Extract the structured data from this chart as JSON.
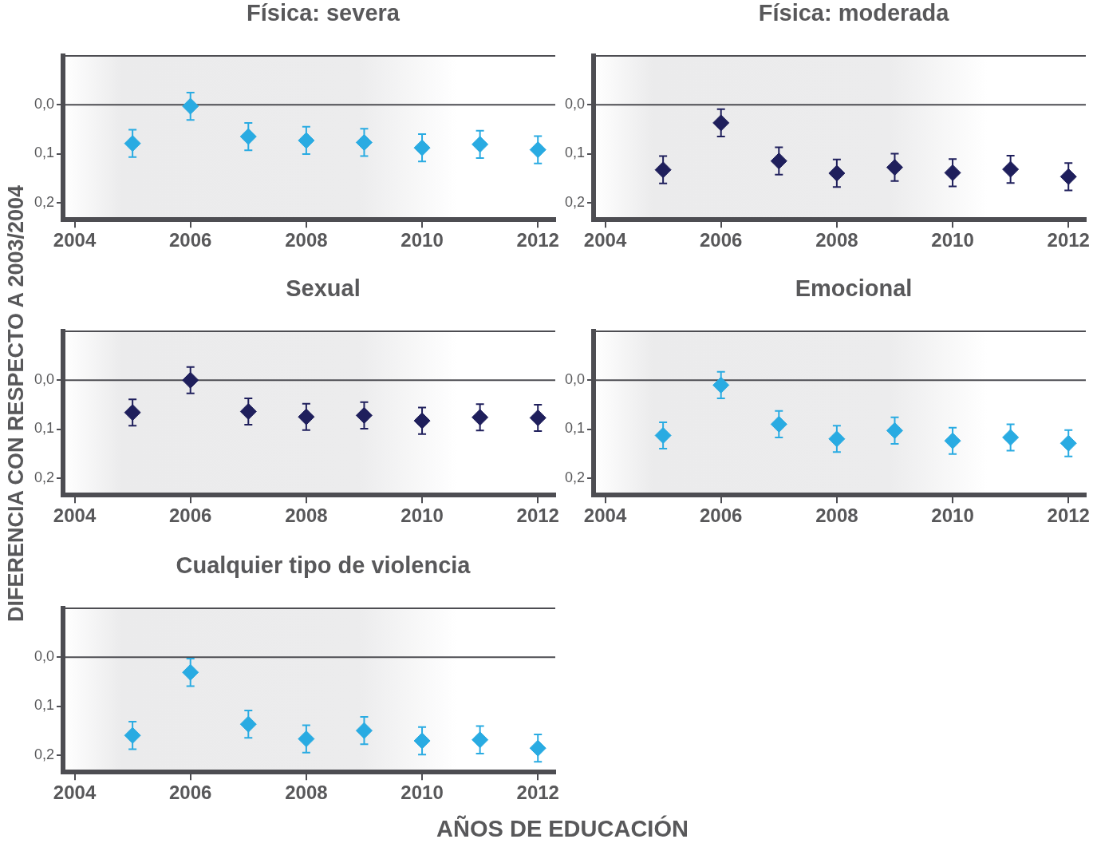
{
  "chart_data": [
    {
      "type": "scatter",
      "title": "Física: severa",
      "ylabel": "DIFERENCIA CON RESPECTO A 2003/2004",
      "x": [
        2005,
        2006,
        2007,
        2008,
        2009,
        2010,
        2011,
        2012
      ],
      "values": [
        0.079,
        0.003,
        0.065,
        0.073,
        0.077,
        0.088,
        0.081,
        0.092
      ],
      "errors": [
        0.028,
        0.028,
        0.028,
        0.028,
        0.028,
        0.028,
        0.028,
        0.028
      ],
      "color": "#29abe2",
      "marker": "diamond",
      "xlim": [
        2003.8,
        2012.3
      ],
      "xticks": [
        2004,
        2006,
        2008,
        2010,
        2012
      ],
      "ylim": [
        0.235,
        -0.1
      ],
      "yticks": [
        {
          "value": 0,
          "label": "0,0"
        },
        {
          "value": 0.1,
          "label": "0,1"
        },
        {
          "value": 0.2,
          "label": "0,2"
        }
      ],
      "ref_lines": [
        {
          "axis": "y",
          "value": 0,
          "color": "#4d4d52"
        }
      ],
      "grid": false,
      "legend": false
    },
    {
      "type": "scatter",
      "title": "Física: moderada",
      "x": [
        2005,
        2006,
        2007,
        2008,
        2009,
        2010,
        2011,
        2012
      ],
      "values": [
        0.133,
        0.037,
        0.115,
        0.14,
        0.128,
        0.139,
        0.132,
        0.147
      ],
      "errors": [
        0.028,
        0.028,
        0.028,
        0.028,
        0.028,
        0.028,
        0.028,
        0.028
      ],
      "color": "#1f1f5c",
      "marker": "diamond",
      "xlim": [
        2003.8,
        2012.3
      ],
      "xticks": [
        2004,
        2006,
        2008,
        2010,
        2012
      ],
      "ylim": [
        0.235,
        -0.1
      ],
      "yticks": [
        {
          "value": 0,
          "label": "0,0"
        },
        {
          "value": 0.1,
          "label": "0,1"
        },
        {
          "value": 0.2,
          "label": "0,2"
        }
      ],
      "ref_lines": [
        {
          "axis": "y",
          "value": 0,
          "color": "#4d4d52"
        }
      ],
      "grid": false,
      "legend": false
    },
    {
      "type": "scatter",
      "title": "Sexual",
      "x": [
        2005,
        2006,
        2007,
        2008,
        2009,
        2010,
        2011,
        2012
      ],
      "values": [
        0.066,
        0.0,
        0.064,
        0.075,
        0.072,
        0.083,
        0.076,
        0.077
      ],
      "errors": [
        0.027,
        0.027,
        0.027,
        0.027,
        0.027,
        0.027,
        0.027,
        0.027
      ],
      "color": "#1f1f5c",
      "marker": "diamond",
      "xlim": [
        2003.8,
        2012.3
      ],
      "xticks": [
        2004,
        2006,
        2008,
        2010,
        2012
      ],
      "ylim": [
        0.235,
        -0.1
      ],
      "yticks": [
        {
          "value": 0,
          "label": "0,0"
        },
        {
          "value": 0.1,
          "label": "0,1"
        },
        {
          "value": 0.2,
          "label": "0,2"
        }
      ],
      "ref_lines": [
        {
          "axis": "y",
          "value": 0,
          "color": "#4d4d52"
        }
      ],
      "grid": false,
      "legend": false
    },
    {
      "type": "scatter",
      "title": "Emocional",
      "x": [
        2005,
        2006,
        2007,
        2008,
        2009,
        2010,
        2011,
        2012
      ],
      "values": [
        0.113,
        0.01,
        0.09,
        0.12,
        0.103,
        0.124,
        0.117,
        0.129
      ],
      "errors": [
        0.027,
        0.027,
        0.027,
        0.027,
        0.027,
        0.027,
        0.027,
        0.027
      ],
      "color": "#29abe2",
      "marker": "diamond",
      "xlim": [
        2003.8,
        2012.3
      ],
      "xticks": [
        2004,
        2006,
        2008,
        2010,
        2012
      ],
      "ylim": [
        0.235,
        -0.1
      ],
      "yticks": [
        {
          "value": 0,
          "label": "0,0"
        },
        {
          "value": 0.1,
          "label": "0,1"
        },
        {
          "value": 0.2,
          "label": "0,2"
        }
      ],
      "ref_lines": [
        {
          "axis": "y",
          "value": 0,
          "color": "#4d4d52"
        }
      ],
      "grid": false,
      "legend": false
    },
    {
      "type": "scatter",
      "title": "Cualquier tipo de violencia",
      "xlabel": "AÑOS DE EDUCACIÓN",
      "x": [
        2005,
        2006,
        2007,
        2008,
        2009,
        2010,
        2011,
        2012
      ],
      "values": [
        0.16,
        0.031,
        0.137,
        0.167,
        0.15,
        0.171,
        0.169,
        0.186
      ],
      "errors": [
        0.028,
        0.028,
        0.028,
        0.028,
        0.028,
        0.028,
        0.028,
        0.028
      ],
      "color": "#29abe2",
      "marker": "diamond",
      "xlim": [
        2003.8,
        2012.3
      ],
      "xticks": [
        2004,
        2006,
        2008,
        2010,
        2012
      ],
      "ylim": [
        0.235,
        -0.1
      ],
      "yticks": [
        {
          "value": 0,
          "label": "0,0"
        },
        {
          "value": 0.1,
          "label": "0,1"
        },
        {
          "value": 0.2,
          "label": "0,2"
        }
      ],
      "ref_lines": [
        {
          "axis": "y",
          "value": 0,
          "color": "#4d4d52"
        }
      ],
      "grid": false,
      "legend": false
    }
  ]
}
